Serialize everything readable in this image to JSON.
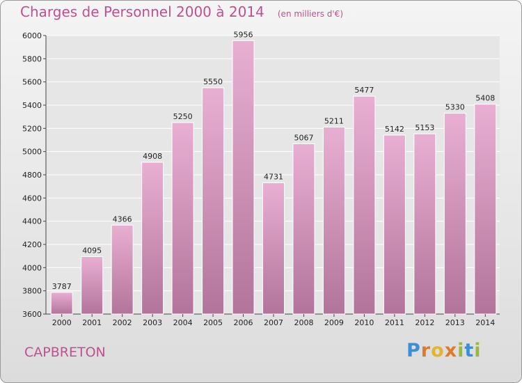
{
  "header": {
    "title": "Charges de Personnel 2000 à 2014",
    "subtitle": "(en milliers d'€)"
  },
  "footer": {
    "city": "CAPBRETON",
    "logo_text": "Proxiti"
  },
  "colors": {
    "accent": "#c0508f",
    "bar_top": "#e9afd3",
    "bar_bottom": "#b2749a"
  },
  "chart_data": {
    "type": "bar",
    "title": "Charges de Personnel 2000 à 2014",
    "subtitle": "(en milliers d'€)",
    "categories": [
      "2000",
      "2001",
      "2002",
      "2003",
      "2004",
      "2005",
      "2006",
      "2007",
      "2008",
      "2009",
      "2010",
      "2011",
      "2012",
      "2013",
      "2014"
    ],
    "values": [
      3787,
      4095,
      4366,
      4908,
      5250,
      5550,
      5956,
      4731,
      5067,
      5211,
      5477,
      5142,
      5153,
      5330,
      5408
    ],
    "ylim": [
      3600,
      6000
    ],
    "yticks": [
      3600,
      3800,
      4000,
      4200,
      4400,
      4600,
      4800,
      5000,
      5200,
      5400,
      5600,
      5800,
      6000
    ],
    "grid": true,
    "xlabel": "",
    "ylabel": ""
  }
}
